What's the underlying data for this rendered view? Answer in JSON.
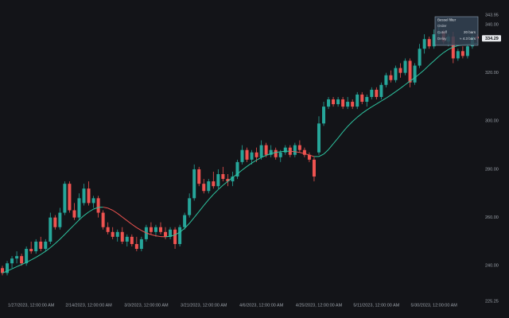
{
  "chart_data": {
    "type": "candlestick",
    "categories": [
      null,
      null,
      null,
      null,
      null,
      null,
      "1/27/2023, 12:00:00 AM",
      null,
      null,
      null,
      null,
      null,
      null,
      null,
      null,
      null,
      null,
      null,
      "2/14/2023, 12:00:00 AM",
      null,
      null,
      null,
      null,
      null,
      null,
      null,
      null,
      null,
      null,
      null,
      "3/3/2023, 12:00:00 AM",
      null,
      null,
      null,
      null,
      null,
      null,
      null,
      null,
      null,
      null,
      null,
      "3/21/2023, 12:00:00 AM",
      null,
      null,
      null,
      null,
      null,
      null,
      null,
      null,
      null,
      null,
      null,
      "4/6/2023, 12:00:00 AM",
      null,
      null,
      null,
      null,
      null,
      null,
      null,
      null,
      null,
      null,
      null,
      "4/25/2023, 12:00:00 AM",
      null,
      null,
      null,
      null,
      null,
      null,
      null,
      null,
      null,
      null,
      null,
      "5/11/2023, 12:00:00 AM",
      null,
      null,
      null,
      null,
      null,
      null,
      null,
      null,
      null,
      null,
      null,
      "5/30/2023, 12:00:00 AM",
      null,
      null,
      null,
      null,
      null,
      null,
      null,
      null,
      null
    ],
    "open": [
      239,
      237,
      241,
      243,
      244,
      241,
      247,
      246,
      250,
      247,
      250,
      260,
      256,
      262,
      274,
      263,
      260,
      266,
      272,
      266,
      268,
      262,
      256,
      254,
      252,
      254,
      250,
      252,
      249,
      247,
      251,
      256,
      254,
      256,
      254,
      252,
      255,
      249,
      256,
      261,
      268,
      280,
      274,
      271,
      275,
      273,
      278,
      276,
      275,
      277,
      283,
      288,
      284,
      287,
      285,
      290,
      286,
      288,
      285,
      287,
      289,
      286,
      290,
      288,
      286,
      284,
      287,
      299,
      306,
      309,
      307,
      309,
      306,
      308,
      306,
      311,
      308,
      310,
      313,
      310,
      315,
      319,
      317,
      322,
      320,
      325,
      316,
      323,
      330,
      334,
      331,
      336,
      337,
      333,
      335,
      326,
      329,
      327,
      331,
      335
    ],
    "high": [
      240,
      242,
      244,
      246,
      245,
      248,
      250,
      251,
      252,
      251,
      262,
      261,
      264,
      275,
      275,
      266,
      270,
      274,
      275,
      269,
      269,
      263,
      258,
      256,
      255,
      256,
      253,
      253,
      252,
      252,
      257,
      258,
      257,
      258,
      256,
      256,
      256,
      257,
      262,
      270,
      282,
      281,
      276,
      276,
      279,
      280,
      281,
      278,
      279,
      284,
      290,
      289,
      288,
      289,
      292,
      291,
      290,
      289,
      288,
      290,
      290,
      291,
      292,
      289,
      287,
      285,
      302,
      308,
      310,
      310,
      310,
      310,
      310,
      309,
      312,
      312,
      311,
      314,
      314,
      316,
      320,
      321,
      323,
      324,
      326,
      326,
      324,
      332,
      336,
      335,
      338,
      339,
      338,
      336,
      337,
      330,
      331,
      332,
      336,
      336
    ],
    "low": [
      236,
      236,
      239,
      241,
      240,
      240,
      245,
      245,
      246,
      246,
      249,
      255,
      255,
      261,
      262,
      259,
      259,
      265,
      265,
      264,
      260,
      255,
      253,
      251,
      250,
      249,
      248,
      248,
      246,
      246,
      250,
      253,
      252,
      253,
      251,
      251,
      247,
      248,
      255,
      260,
      267,
      273,
      270,
      270,
      272,
      272,
      275,
      273,
      273,
      276,
      282,
      283,
      282,
      283,
      284,
      285,
      285,
      284,
      283,
      286,
      285,
      285,
      287,
      285,
      283,
      275,
      286,
      298,
      305,
      306,
      306,
      305,
      305,
      305,
      305,
      307,
      306,
      309,
      309,
      309,
      314,
      316,
      316,
      318,
      319,
      314,
      315,
      322,
      328,
      330,
      330,
      333,
      332,
      331,
      324,
      325,
      326,
      326,
      330,
      333
    ],
    "close": [
      237,
      241,
      243,
      244,
      241,
      247,
      246,
      250,
      247,
      250,
      260,
      256,
      262,
      274,
      263,
      260,
      268,
      272,
      266,
      268,
      262,
      256,
      254,
      252,
      254,
      250,
      252,
      249,
      247,
      251,
      256,
      254,
      256,
      254,
      252,
      255,
      249,
      256,
      261,
      268,
      280,
      274,
      271,
      275,
      273,
      278,
      276,
      275,
      277,
      283,
      288,
      284,
      287,
      285,
      290,
      286,
      288,
      285,
      287,
      289,
      286,
      290,
      288,
      286,
      284,
      277,
      299,
      306,
      309,
      307,
      309,
      306,
      308,
      306,
      311,
      308,
      310,
      313,
      310,
      315,
      319,
      317,
      322,
      320,
      325,
      316,
      323,
      330,
      334,
      331,
      336,
      337,
      333,
      335,
      326,
      329,
      327,
      331,
      335,
      334.29
    ],
    "up_color": "#26a69a",
    "down_color": "#ef5350",
    "overlay": {
      "name": "Bessel filter",
      "values": [
        237,
        237.8,
        238.7,
        239.6,
        240.5,
        241.4,
        242.4,
        243.5,
        244.7,
        246,
        247.5,
        249.2,
        251,
        253,
        255,
        257,
        259,
        260.8,
        262.3,
        263.5,
        264.2,
        264.3,
        263.9,
        263,
        261.7,
        260.2,
        258.7,
        257.2,
        255.8,
        254.6,
        253.6,
        252.9,
        252.4,
        252.1,
        252,
        252.2,
        252.8,
        253.9,
        255.5,
        257.6,
        260,
        262.5,
        265,
        267.4,
        269.6,
        271.6,
        273.4,
        275,
        276.6,
        278.1,
        279.7,
        281.2,
        282.6,
        283.8,
        284.9,
        285.8,
        286.5,
        287,
        287.3,
        287.5,
        287.5,
        287.3,
        287,
        286.5,
        285.9,
        285.3,
        285.3,
        286.3,
        288.2,
        290.6,
        293,
        295.5,
        297.8,
        299.8,
        301.6,
        303.2,
        304.6,
        305.9,
        307.1,
        308.3,
        309.5,
        310.8,
        312.2,
        313.6,
        315.1,
        316.6,
        318,
        319.6,
        321.3,
        323.2,
        325,
        326.8,
        328.4,
        329.7,
        330.7,
        331.3,
        331.6,
        331.8,
        332,
        332.3
      ],
      "up_color": "#2ec4a0",
      "down_color": "#ef5350",
      "rows": [
        {
          "label": "Order"
        },
        {
          "label": "Cutoff",
          "value": "20 bars"
        },
        {
          "label": "Delay",
          "value": "≈ 4.3 bars"
        }
      ]
    },
    "ylim": [
      225.25,
      343.95
    ],
    "yticks": [
      {
        "value": 225.25,
        "label": "225.25"
      },
      {
        "value": 240,
        "label": "240.00"
      },
      {
        "value": 260,
        "label": "260.00"
      },
      {
        "value": 280,
        "label": "280.00"
      },
      {
        "value": 300,
        "label": "300.00"
      },
      {
        "value": 320,
        "label": "320.00"
      },
      {
        "value": 340,
        "label": "340.00"
      },
      {
        "value": 343.95,
        "label": "343.95"
      }
    ]
  }
}
